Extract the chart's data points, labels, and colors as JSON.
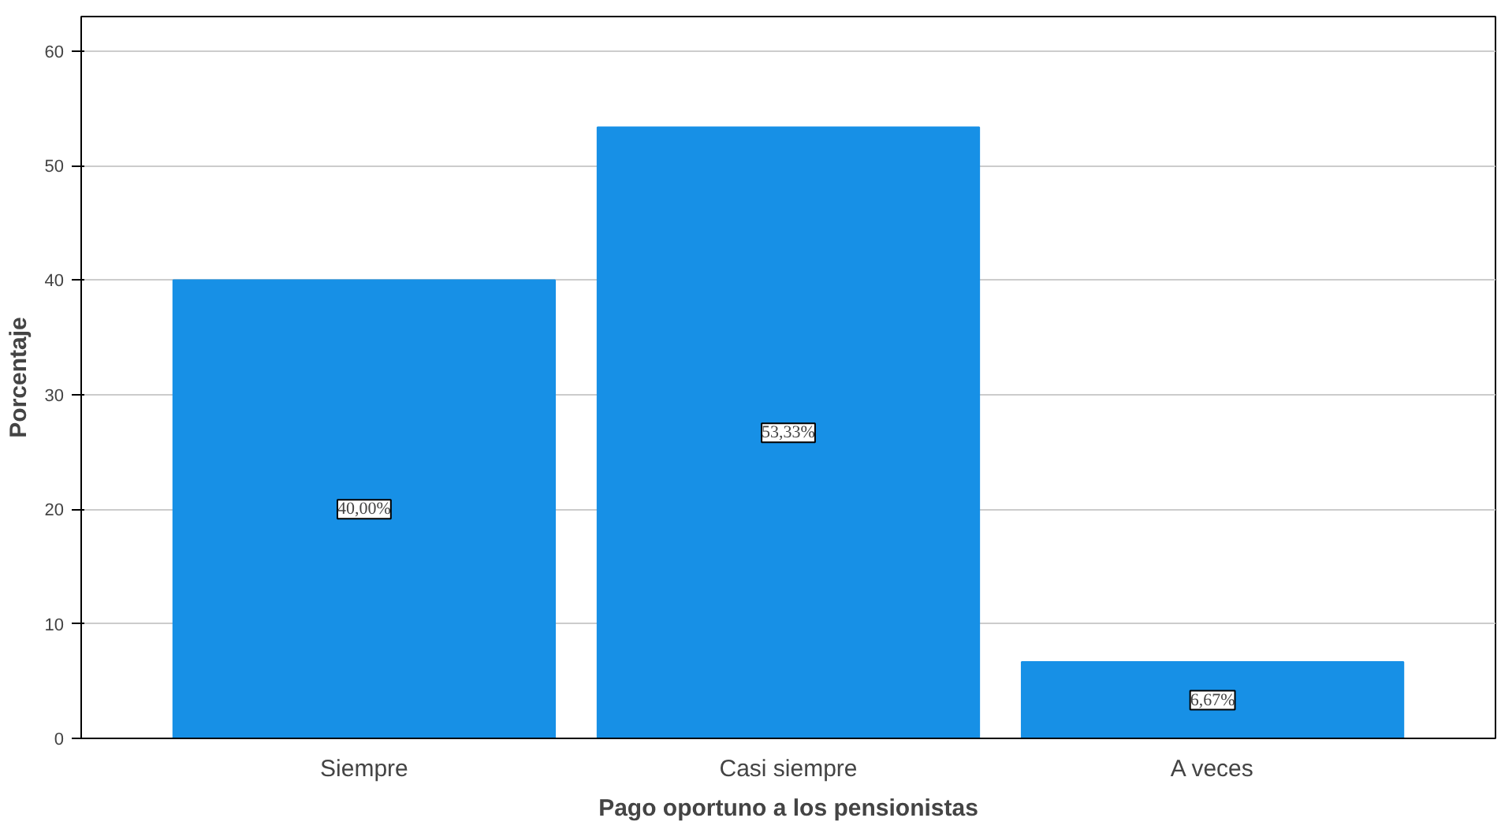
{
  "chart_data": {
    "type": "bar",
    "xlabel": "Pago oportuno a los pensionistas",
    "ylabel": "Porcentaje",
    "categories": [
      "Siempre",
      "Casi siempre",
      "A veces"
    ],
    "values": [
      40.0,
      53.33,
      6.67
    ],
    "value_labels": [
      "40,00%",
      "53,33%",
      "6,67%"
    ],
    "color": "#1790e6",
    "ylim": [
      0,
      63
    ],
    "yticks": [
      0,
      10,
      20,
      30,
      40,
      50,
      60
    ],
    "grid": "y"
  }
}
